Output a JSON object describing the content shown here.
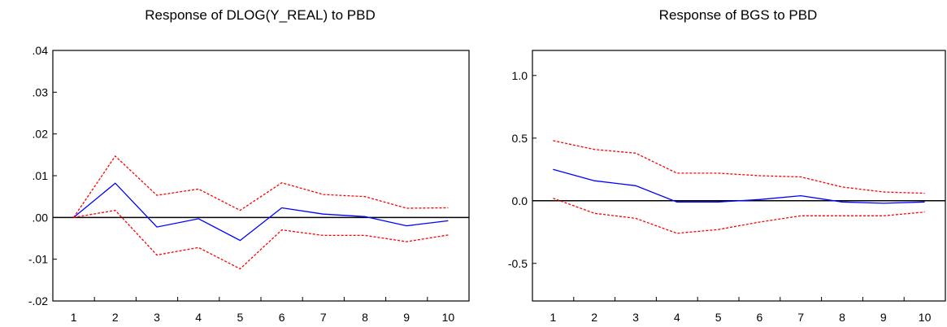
{
  "chart_data": [
    {
      "type": "line",
      "title": "Response of DLOG(Y_REAL) to PBD",
      "xlabel": "",
      "ylabel": "",
      "x": [
        1,
        2,
        3,
        4,
        5,
        6,
        7,
        8,
        9,
        10
      ],
      "x_tick_labels": [
        "1",
        "2",
        "3",
        "4",
        "5",
        "6",
        "7",
        "8",
        "9",
        "10"
      ],
      "ylim": [
        -0.02,
        0.04
      ],
      "y_ticks": [
        -0.02,
        -0.01,
        0.0,
        0.01,
        0.02,
        0.03,
        0.04
      ],
      "y_tick_labels": [
        "-.02",
        "-.01",
        ".00",
        ".01",
        ".02",
        ".03",
        ".04"
      ],
      "zero_line": 0,
      "grid": false,
      "series": [
        {
          "role": "response",
          "color": "#0000ff",
          "style": "solid",
          "values": [
            0.0,
            0.0082,
            -0.0023,
            -0.0003,
            -0.0055,
            0.0023,
            0.0008,
            0.0002,
            -0.002,
            -0.0008
          ]
        },
        {
          "role": "upper band",
          "color": "#ff0000",
          "style": "dotted",
          "values": [
            0.0,
            0.0147,
            0.0053,
            0.0068,
            0.0017,
            0.0083,
            0.0055,
            0.005,
            0.0022,
            0.0023
          ]
        },
        {
          "role": "lower band",
          "color": "#ff0000",
          "style": "dotted",
          "values": [
            0.0,
            0.0017,
            -0.009,
            -0.0072,
            -0.0123,
            -0.003,
            -0.0043,
            -0.0043,
            -0.0058,
            -0.0042
          ]
        }
      ]
    },
    {
      "type": "line",
      "title": "Response of BGS to PBD",
      "xlabel": "",
      "ylabel": "",
      "x": [
        1,
        2,
        3,
        4,
        5,
        6,
        7,
        8,
        9,
        10
      ],
      "x_tick_labels": [
        "1",
        "2",
        "3",
        "4",
        "5",
        "6",
        "7",
        "8",
        "9",
        "10"
      ],
      "ylim": [
        -0.8,
        1.2
      ],
      "y_ticks": [
        -0.5,
        0.0,
        0.5,
        1.0
      ],
      "y_tick_labels": [
        "-0.5",
        "0.0",
        "0.5",
        "1.0"
      ],
      "zero_line": 0,
      "grid": false,
      "series": [
        {
          "role": "response",
          "color": "#0000ff",
          "style": "solid",
          "values": [
            0.25,
            0.16,
            0.12,
            -0.01,
            -0.01,
            0.01,
            0.04,
            -0.01,
            -0.02,
            -0.01
          ]
        },
        {
          "role": "upper band",
          "color": "#ff0000",
          "style": "dotted",
          "values": [
            0.48,
            0.41,
            0.38,
            0.22,
            0.22,
            0.2,
            0.19,
            0.11,
            0.07,
            0.06
          ]
        },
        {
          "role": "lower band",
          "color": "#ff0000",
          "style": "dotted",
          "values": [
            0.02,
            -0.1,
            -0.14,
            -0.26,
            -0.23,
            -0.17,
            -0.12,
            -0.12,
            -0.12,
            -0.09
          ]
        }
      ]
    }
  ]
}
